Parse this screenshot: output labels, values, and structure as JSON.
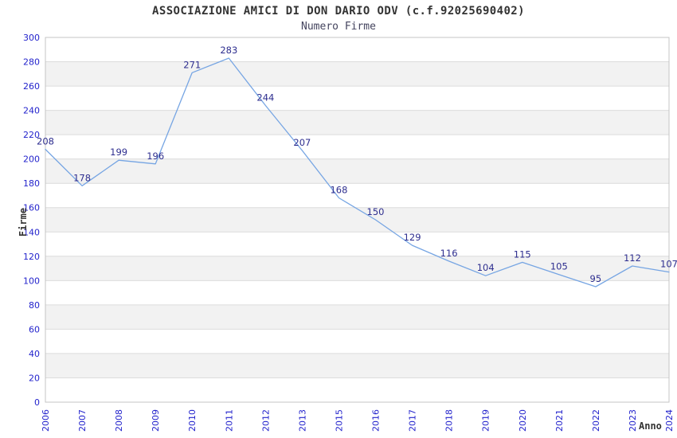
{
  "chart_data": {
    "type": "line",
    "title": "ASSOCIAZIONE AMICI DI DON DARIO ODV (c.f.92025690402)",
    "subtitle": "Numero Firme",
    "xlabel": "Anno",
    "ylabel": "Firme",
    "categories": [
      "2006",
      "2007",
      "2008",
      "2009",
      "2010",
      "2011",
      "2012",
      "2013",
      "2015",
      "2016",
      "2017",
      "2018",
      "2019",
      "2020",
      "2021",
      "2022",
      "2023",
      "2024"
    ],
    "values": [
      208,
      178,
      199,
      196,
      271,
      283,
      244,
      207,
      168,
      150,
      129,
      116,
      104,
      115,
      105,
      95,
      112,
      107
    ],
    "ylim": [
      0,
      300
    ],
    "ytick_step": 20,
    "grid": "horizontal-bands-alternating",
    "legend": "none",
    "colors": {
      "line": "#76A5E3",
      "data_label": "#2E2E8F",
      "tick_label": "#2323CC",
      "band_gray": "#F2F2F2",
      "band_white": "#FFFFFF",
      "gridline": "#DCDCDC",
      "plot_border": "#C4C4C4",
      "title": "#333333",
      "subtitle": "#44445E",
      "axis_title": "#333333"
    }
  }
}
